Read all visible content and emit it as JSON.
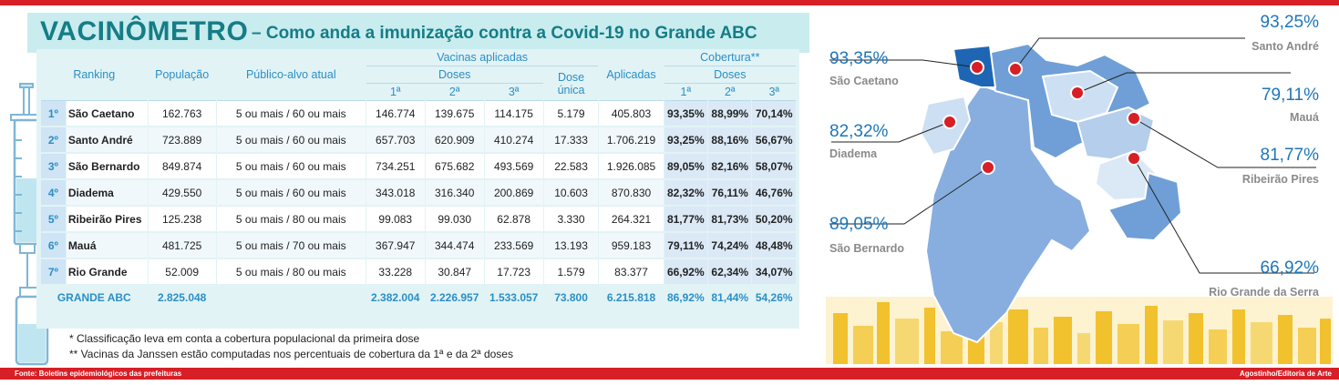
{
  "title": {
    "main": "VACINÔMETRO",
    "sub": "– Como anda a imunização contra a Covid-19 no Grande ABC"
  },
  "headers": {
    "ranking": "Ranking",
    "populacao": "População",
    "publico": "Público-alvo atual",
    "vacinas": "Vacinas aplicadas",
    "doses": "Doses",
    "d1": "1ª",
    "d2": "2ª",
    "d3": "3ª",
    "dose_unica_1": "Dose",
    "dose_unica_2": "única",
    "aplicadas": "Aplicadas",
    "cobertura": "Cobertura**",
    "cob_doses": "Doses",
    "c1": "1ª",
    "c2": "2ª",
    "c3": "3ª"
  },
  "rows": [
    {
      "rank": "1º",
      "city": "São Caetano",
      "pop": "162.763",
      "publico": "5 ou mais / 60 ou mais",
      "d1": "146.774",
      "d2": "139.675",
      "d3": "114.175",
      "du": "5.179",
      "apl": "405.803",
      "c1": "93,35%",
      "c2": "88,99%",
      "c3": "70,14%"
    },
    {
      "rank": "2º",
      "city": "Santo André",
      "pop": "723.889",
      "publico": "5 ou mais / 60 ou mais",
      "d1": "657.703",
      "d2": "620.909",
      "d3": "410.274",
      "du": "17.333",
      "apl": "1.706.219",
      "c1": "93,25%",
      "c2": "88,16%",
      "c3": "56,67%"
    },
    {
      "rank": "3º",
      "city": "São Bernardo",
      "pop": "849.874",
      "publico": "5 ou mais / 60 ou mais",
      "d1": "734.251",
      "d2": "675.682",
      "d3": "493.569",
      "du": "22.583",
      "apl": "1.926.085",
      "c1": "89,05%",
      "c2": "82,16%",
      "c3": "58,07%"
    },
    {
      "rank": "4º",
      "city": "Diadema",
      "pop": "429.550",
      "publico": "5 ou mais / 60 ou mais",
      "d1": "343.018",
      "d2": "316.340",
      "d3": "200.869",
      "du": "10.603",
      "apl": "870.830",
      "c1": "82,32%",
      "c2": "76,11%",
      "c3": "46,76%"
    },
    {
      "rank": "5º",
      "city": "Ribeirão Pires",
      "pop": "125.238",
      "publico": "5 ou mais / 80 ou mais",
      "d1": "99.083",
      "d2": "99.030",
      "d3": "62.878",
      "du": "3.330",
      "apl": "264.321",
      "c1": "81,77%",
      "c2": "81,73%",
      "c3": "50,20%"
    },
    {
      "rank": "6º",
      "city": "Mauá",
      "pop": "481.725",
      "publico": "5 ou mais / 70 ou mais",
      "d1": "367.947",
      "d2": "344.474",
      "d3": "233.569",
      "du": "13.193",
      "apl": "959.183",
      "c1": "79,11%",
      "c2": "74,24%",
      "c3": "48,48%"
    },
    {
      "rank": "7º",
      "city": "Rio Grande",
      "pop": "52.009",
      "publico": "5 ou mais / 80 ou mais",
      "d1": "33.228",
      "d2": "30.847",
      "d3": "17.723",
      "du": "1.579",
      "apl": "83.377",
      "c1": "66,92%",
      "c2": "62,34%",
      "c3": "34,07%"
    }
  ],
  "total": {
    "label": "GRANDE ABC",
    "pop": "2.825.048",
    "d1": "2.382.004",
    "d2": "2.226.957",
    "d3": "1.533.057",
    "du": "73.800",
    "apl": "6.215.818",
    "c1": "86,92%",
    "c2": "81,44%",
    "c3": "54,26%"
  },
  "notes": [
    "* Classificação leva em conta a cobertura populacional da primeira dose",
    "** Vacinas da Janssen estão computadas nos percentuais de cobertura da 1ª e da 2ª doses"
  ],
  "map_labels": [
    {
      "pct": "93,25%",
      "name": "Santo André"
    },
    {
      "pct": "93,35%",
      "name": "São Caetano"
    },
    {
      "pct": "79,11%",
      "name": "Mauá"
    },
    {
      "pct": "82,32%",
      "name": "Diadema"
    },
    {
      "pct": "81,77%",
      "name": "Ribeirão Pires"
    },
    {
      "pct": "89,05%",
      "name": "São Bernardo"
    },
    {
      "pct": "66,92%",
      "name": "Rio Grande da Serra"
    }
  ],
  "footer": {
    "source": "Fonte: Boletins epidemiológicos das prefeituras",
    "credit": "Agostinho/Editoria de Arte"
  },
  "colors": {
    "accent_red": "#d71f26",
    "title_teal": "#157d86",
    "header_blue": "#2a8fc6",
    "map_blue": "#6f9fd6",
    "skyline_yellow": "#f2c12e"
  }
}
